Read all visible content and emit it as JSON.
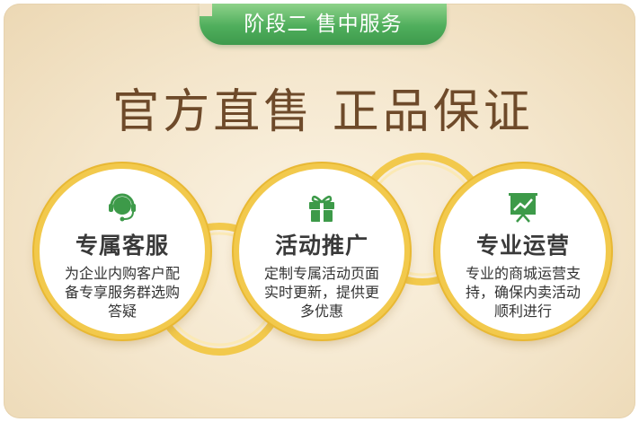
{
  "tab": {
    "label": "阶段二 售中服务"
  },
  "headline": "官方直售 正品保证",
  "colors": {
    "tab_green": "#4fae5c",
    "headline_brown": "#6e4a2a",
    "ring_gold": "#f2c94c",
    "icon_green": "#3d9a49"
  },
  "features": [
    {
      "icon": "headset-icon",
      "title": "专属客服",
      "desc": "为企业内购客户配备专享服务群选购答疑"
    },
    {
      "icon": "gift-icon",
      "title": "活动推广",
      "desc": "定制专属活动页面实时更新，提供更多优惠"
    },
    {
      "icon": "presentation-chart-icon",
      "title": "专业运营",
      "desc": "专业的商城运营支持，确保内卖活动顺利进行"
    }
  ]
}
